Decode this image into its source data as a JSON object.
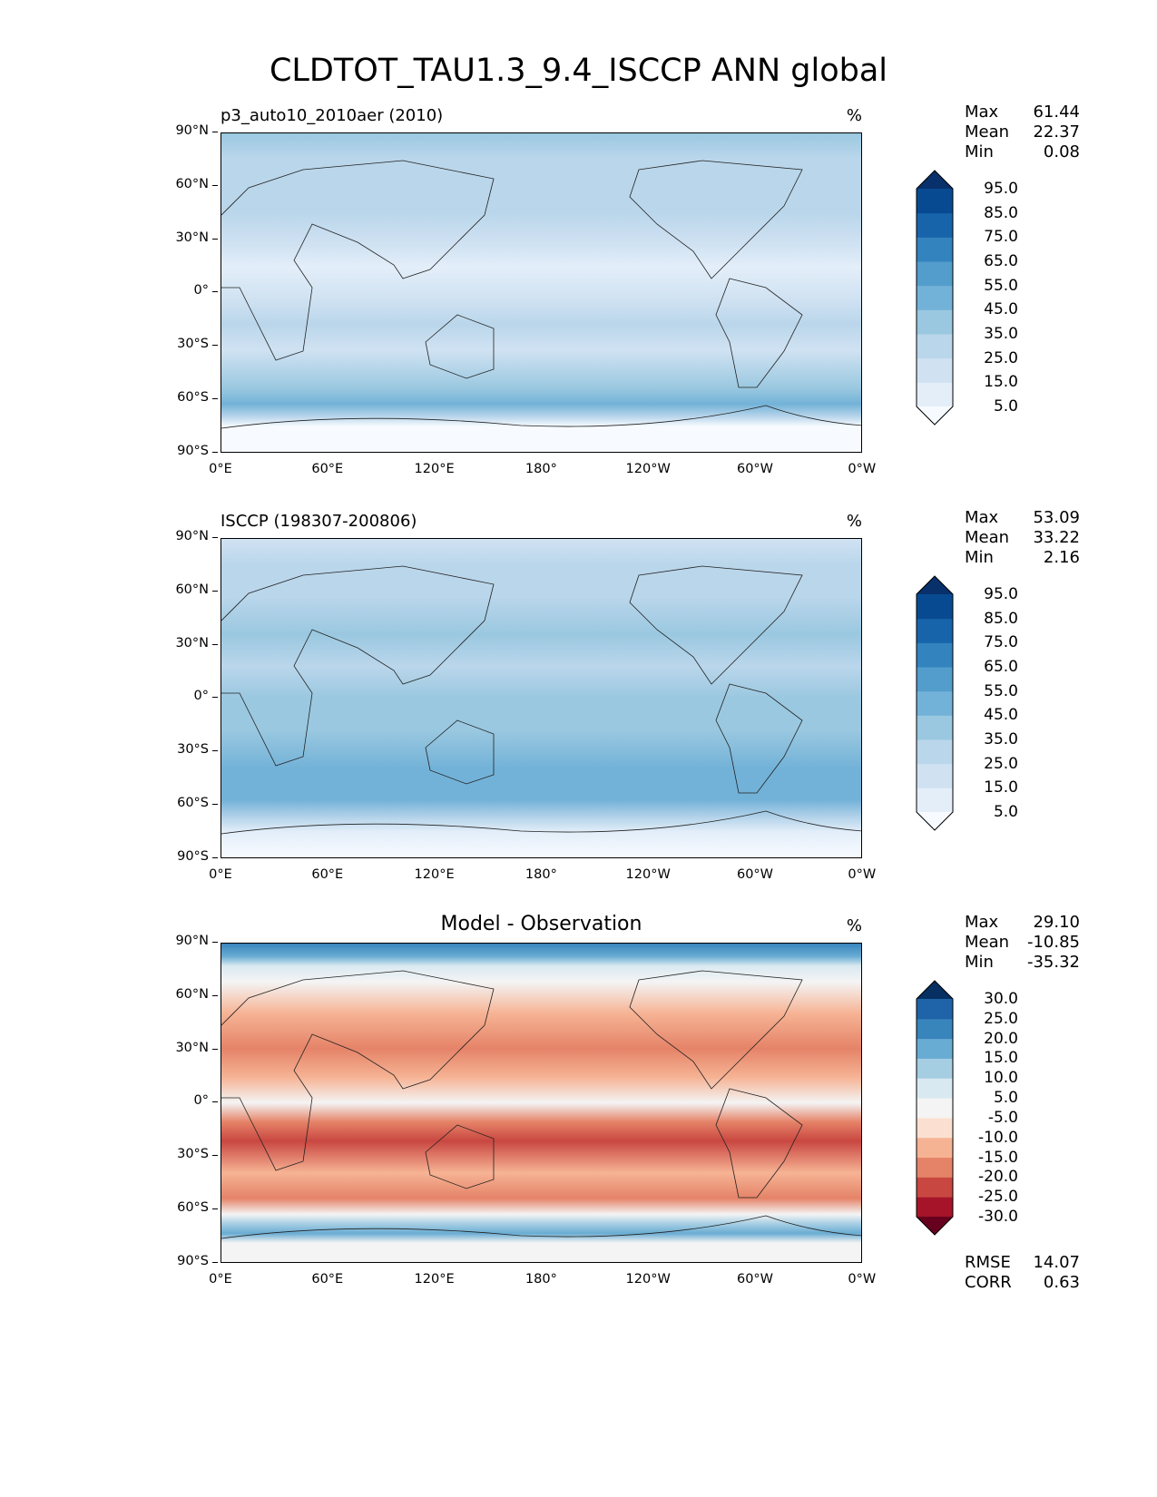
{
  "figure_title": "CLDTOT_TAU1.3_9.4_ISCCP ANN global",
  "x_ticks": [
    "0°E",
    "60°E",
    "120°E",
    "180°",
    "120°W",
    "60°W",
    "0°W"
  ],
  "y_ticks": [
    "90°N",
    "60°N",
    "30°N",
    "0°",
    "30°S",
    "60°S",
    "90°S"
  ],
  "panels": [
    {
      "title": "p3_auto10_2010aer (2010)",
      "unit": "%",
      "max_label": "Max",
      "max": "61.44",
      "mean_label": "Mean",
      "mean": "22.37",
      "min_label": "Min",
      "min": "0.08",
      "colorbar": {
        "levels": [
          "5.0",
          "15.0",
          "25.0",
          "35.0",
          "45.0",
          "55.0",
          "65.0",
          "75.0",
          "85.0",
          "95.0"
        ],
        "colors": [
          "#f7fbff",
          "#e3eef9",
          "#d0e2f2",
          "#bad6eb",
          "#9ac8e0",
          "#73b2d8",
          "#529dcc",
          "#3383be",
          "#1764ab",
          "#084a91",
          "#08306b"
        ]
      }
    },
    {
      "title": "ISCCP (198307-200806)",
      "unit": "%",
      "max_label": "Max",
      "max": "53.09",
      "mean_label": "Mean",
      "mean": "33.22",
      "min_label": "Min",
      "min": "2.16",
      "colorbar": {
        "levels": [
          "5.0",
          "15.0",
          "25.0",
          "35.0",
          "45.0",
          "55.0",
          "65.0",
          "75.0",
          "85.0",
          "95.0"
        ],
        "colors": [
          "#f7fbff",
          "#e3eef9",
          "#d0e2f2",
          "#bad6eb",
          "#9ac8e0",
          "#73b2d8",
          "#529dcc",
          "#3383be",
          "#1764ab",
          "#084a91",
          "#08306b"
        ]
      }
    },
    {
      "title": "Model - Observation",
      "unit": "%",
      "max_label": "Max",
      "max": "29.10",
      "mean_label": "Mean",
      "mean": "-10.85",
      "min_label": "Min",
      "min": "-35.32",
      "rmse_label": "RMSE",
      "rmse": "14.07",
      "corr_label": "CORR",
      "corr": "0.63",
      "colorbar": {
        "levels": [
          "-30.0",
          "-25.0",
          "-20.0",
          "-15.0",
          "-10.0",
          "-5.0",
          "5.0",
          "10.0",
          "15.0",
          "20.0",
          "25.0",
          "30.0"
        ],
        "colors": [
          "#67001f",
          "#a51429",
          "#c94741",
          "#e58368",
          "#f6b394",
          "#fbe0d1",
          "#f4f4f4",
          "#d9e9f1",
          "#a6cee3",
          "#69acd3",
          "#3885bc",
          "#1f63a8",
          "#053061"
        ]
      }
    }
  ]
}
